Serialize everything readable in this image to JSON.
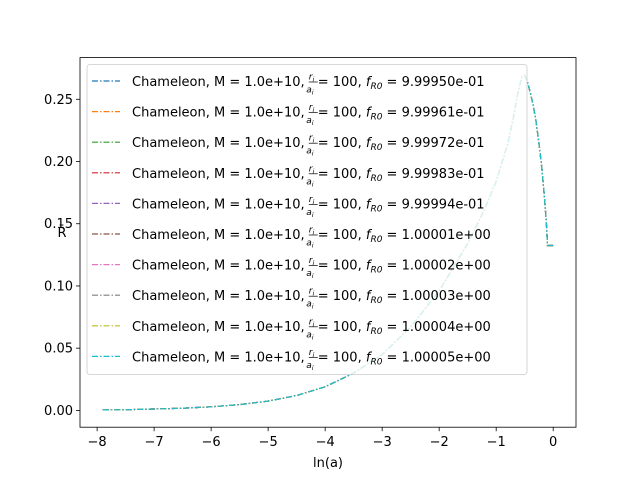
{
  "chart_data": {
    "type": "line",
    "xlabel": "ln(a)",
    "ylabel": "R̄",
    "xlim": [
      -8.3,
      0.4
    ],
    "ylim": [
      -0.0135,
      0.2835
    ],
    "x_ticks": [
      -8,
      -7,
      -6,
      -5,
      -4,
      -3,
      -2,
      -1,
      0
    ],
    "y_ticks": [
      0.0,
      0.05,
      0.1,
      0.15,
      0.2,
      0.25
    ],
    "y_tick_labels": [
      "0.00",
      "0.05",
      "0.10",
      "0.15",
      "0.20",
      "0.25"
    ],
    "grid": false,
    "legend_location": "upper left",
    "line_style": "dash-dot",
    "series": [
      {
        "name": "Chameleon, M = 1.0e+10, r_i/a_i = 100, f_R0 = 9.99950e-01",
        "color": "#1f77b4"
      },
      {
        "name": "Chameleon, M = 1.0e+10, r_i/a_i = 100, f_R0 = 9.99961e-01",
        "color": "#ff7f0e"
      },
      {
        "name": "Chameleon, M = 1.0e+10, r_i/a_i = 100, f_R0 = 9.99972e-01",
        "color": "#2ca02c"
      },
      {
        "name": "Chameleon, M = 1.0e+10, r_i/a_i = 100, f_R0 = 9.99983e-01",
        "color": "#d62728"
      },
      {
        "name": "Chameleon, M = 1.0e+10, r_i/a_i = 100, f_R0 = 9.99994e-01",
        "color": "#9467bd"
      },
      {
        "name": "Chameleon, M = 1.0e+10, r_i/a_i = 100, f_R0 = 1.00001e+00",
        "color": "#8c564b"
      },
      {
        "name": "Chameleon, M = 1.0e+10, r_i/a_i = 100, f_R0 = 1.00002e+00",
        "color": "#e377c2"
      },
      {
        "name": "Chameleon, M = 1.0e+10, r_i/a_i = 100, f_R0 = 1.00003e+00",
        "color": "#7f7f7f"
      },
      {
        "name": "Chameleon, M = 1.0e+10, r_i/a_i = 100, f_R0 = 1.00004e+00",
        "color": "#bcbd22"
      },
      {
        "name": "Chameleon, M = 1.0e+10, r_i/a_i = 100, f_R0 = 1.00005e+00",
        "color": "#17becf"
      }
    ],
    "legend_entries": [
      {
        "prefix": "Chameleon, M = 1.0e+10, ",
        "frac_num": "r",
        "frac_num_sub": "i",
        "frac_den": "a",
        "frac_den_sub": "i",
        "mid": " = 100, ",
        "f": "f",
        "f_sub": "R0",
        "suffix": " = 9.99950e-01"
      },
      {
        "prefix": "Chameleon, M = 1.0e+10, ",
        "frac_num": "r",
        "frac_num_sub": "i",
        "frac_den": "a",
        "frac_den_sub": "i",
        "mid": " = 100, ",
        "f": "f",
        "f_sub": "R0",
        "suffix": " = 9.99961e-01"
      },
      {
        "prefix": "Chameleon, M = 1.0e+10, ",
        "frac_num": "r",
        "frac_num_sub": "i",
        "frac_den": "a",
        "frac_den_sub": "i",
        "mid": " = 100, ",
        "f": "f",
        "f_sub": "R0",
        "suffix": " = 9.99972e-01"
      },
      {
        "prefix": "Chameleon, M = 1.0e+10, ",
        "frac_num": "r",
        "frac_num_sub": "i",
        "frac_den": "a",
        "frac_den_sub": "i",
        "mid": " = 100, ",
        "f": "f",
        "f_sub": "R0",
        "suffix": " = 9.99983e-01"
      },
      {
        "prefix": "Chameleon, M = 1.0e+10, ",
        "frac_num": "r",
        "frac_num_sub": "i",
        "frac_den": "a",
        "frac_den_sub": "i",
        "mid": " = 100, ",
        "f": "f",
        "f_sub": "R0",
        "suffix": " = 9.99994e-01"
      },
      {
        "prefix": "Chameleon, M = 1.0e+10, ",
        "frac_num": "r",
        "frac_num_sub": "i",
        "frac_den": "a",
        "frac_den_sub": "i",
        "mid": " = 100, ",
        "f": "f",
        "f_sub": "R0",
        "suffix": " = 1.00001e+00"
      },
      {
        "prefix": "Chameleon, M = 1.0e+10, ",
        "frac_num": "r",
        "frac_num_sub": "i",
        "frac_den": "a",
        "frac_den_sub": "i",
        "mid": " = 100, ",
        "f": "f",
        "f_sub": "R0",
        "suffix": " = 1.00002e+00"
      },
      {
        "prefix": "Chameleon, M = 1.0e+10, ",
        "frac_num": "r",
        "frac_num_sub": "i",
        "frac_den": "a",
        "frac_den_sub": "i",
        "mid": " = 100, ",
        "f": "f",
        "f_sub": "R0",
        "suffix": " = 1.00003e+00"
      },
      {
        "prefix": "Chameleon, M = 1.0e+10, ",
        "frac_num": "r",
        "frac_num_sub": "i",
        "frac_den": "a",
        "frac_den_sub": "i",
        "mid": " = 100, ",
        "f": "f",
        "f_sub": "R0",
        "suffix": " = 1.00004e+00"
      },
      {
        "prefix": "Chameleon, M = 1.0e+10, ",
        "frac_num": "r",
        "frac_num_sub": "i",
        "frac_den": "a",
        "frac_den_sub": "i",
        "mid": " = 100, ",
        "f": "f",
        "f_sub": "R0",
        "suffix": " = 1.00005e+00"
      }
    ],
    "curve": {
      "x": [
        -7.9,
        -7.5,
        -7.0,
        -6.5,
        -6.0,
        -5.5,
        -5.0,
        -4.5,
        -4.0,
        -3.5,
        -3.0,
        -2.5,
        -2.0,
        -1.5,
        -1.2,
        -1.0,
        -0.8,
        -0.7,
        -0.62,
        -0.55,
        -0.5,
        -0.45,
        -0.4,
        -0.35,
        -0.3,
        -0.25,
        -0.2,
        -0.15,
        -0.12,
        -0.1,
        -0.05,
        0.0
      ],
      "y": [
        0.0004,
        0.0006,
        0.0011,
        0.0018,
        0.0029,
        0.0047,
        0.0075,
        0.012,
        0.019,
        0.03,
        0.045,
        0.067,
        0.096,
        0.134,
        0.162,
        0.184,
        0.214,
        0.235,
        0.255,
        0.268,
        0.269,
        0.264,
        0.255,
        0.245,
        0.232,
        0.215,
        0.195,
        0.17,
        0.15,
        0.1325,
        0.1325,
        0.1325
      ]
    }
  }
}
